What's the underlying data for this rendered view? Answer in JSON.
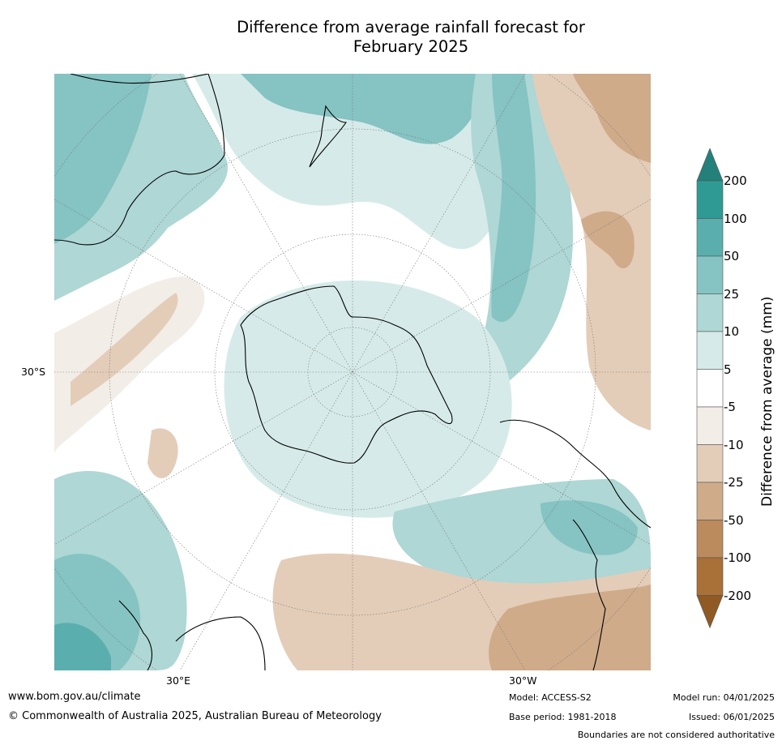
{
  "title_line1": "Difference from average rainfall forecast for",
  "title_line2": "February 2025",
  "map": {
    "lat_label": "30°S",
    "lon_labels": [
      "30°E",
      "30°W"
    ]
  },
  "colorbar": {
    "title": "Difference from average (mm)",
    "ticks": [
      "200",
      "100",
      "50",
      "25",
      "10",
      "5",
      "-5",
      "-10",
      "-25",
      "-50",
      "-100",
      "-200"
    ],
    "colors": [
      "#24807a",
      "#2f9a94",
      "#5aaeae",
      "#86c3c3",
      "#aed7d5",
      "#d6ebe9",
      "#ffffff",
      "#f2ede7",
      "#e3cdb9",
      "#cfab8a",
      "#bb8a5d",
      "#a97038",
      "#8f5a24"
    ]
  },
  "footer": {
    "website": "www.bom.gov.au/climate",
    "copyright": "© Commonwealth of Australia 2025, Australian Bureau of Meteorology",
    "model": "Model: ACCESS-S2",
    "base_period": "Base period: 1981-2018",
    "model_run": "Model run: 04/01/2025",
    "issued": "Issued: 06/01/2025",
    "disclaimer": "Boundaries are not considered authoritative"
  }
}
